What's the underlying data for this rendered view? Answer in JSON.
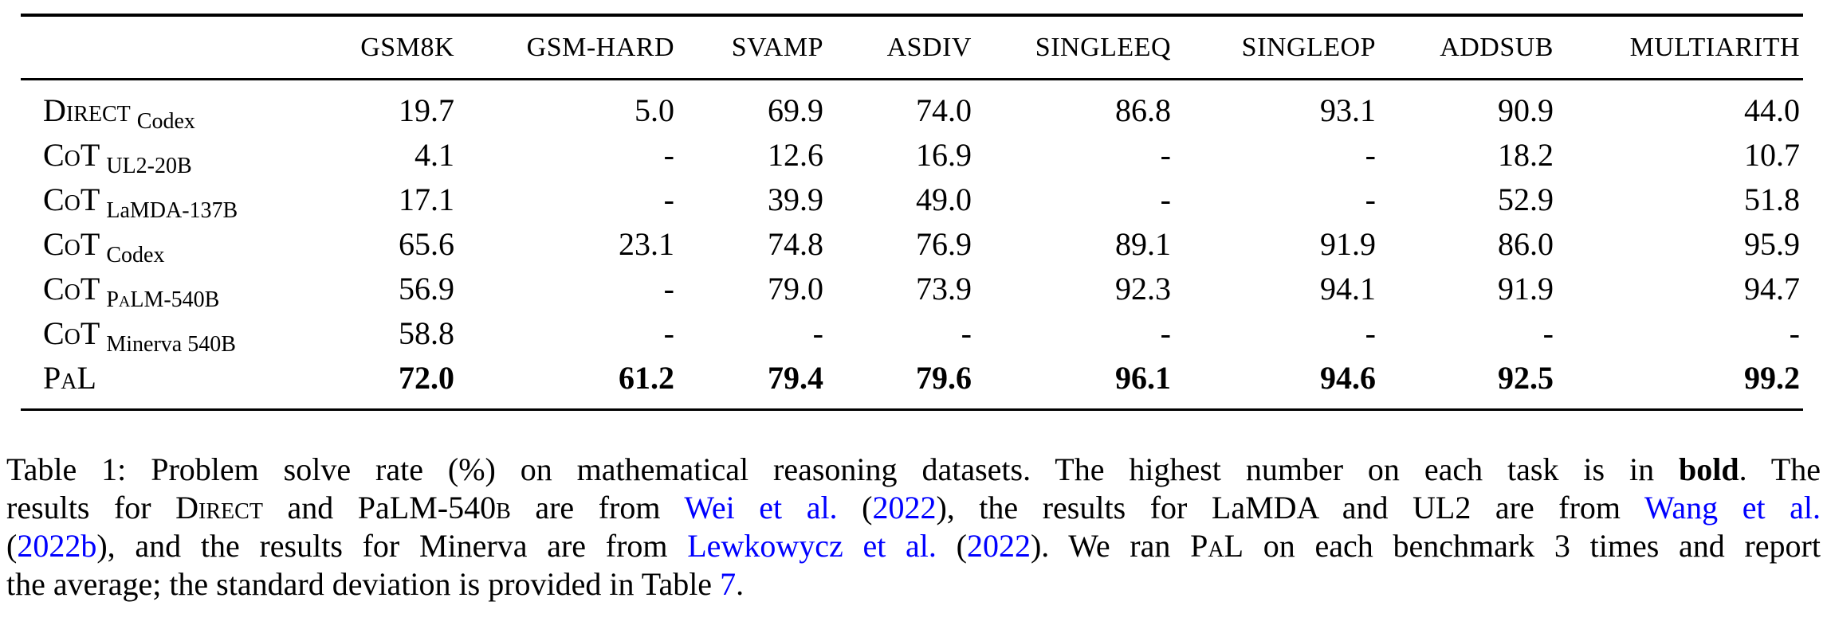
{
  "table": {
    "columns": [
      "GSM8K",
      "GSM-HARD",
      "SVAMP",
      "ASDIV",
      "SINGLEEQ",
      "SINGLEOP",
      "ADDSUB",
      "MULTIARITH"
    ],
    "rows": [
      {
        "method": "Direct",
        "model": "Codex",
        "values": [
          "19.7",
          "5.0",
          "69.9",
          "74.0",
          "86.8",
          "93.1",
          "90.9",
          "44.0"
        ],
        "bold": false
      },
      {
        "method": "CoT",
        "model": "UL2-20B",
        "values": [
          "4.1",
          "-",
          "12.6",
          "16.9",
          "-",
          "-",
          "18.2",
          "10.7"
        ],
        "bold": false
      },
      {
        "method": "CoT",
        "model": "LaMDA-137B",
        "values": [
          "17.1",
          "-",
          "39.9",
          "49.0",
          "-",
          "-",
          "52.9",
          "51.8"
        ],
        "bold": false
      },
      {
        "method": "CoT",
        "model": "Codex",
        "values": [
          "65.6",
          "23.1",
          "74.8",
          "76.9",
          "89.1",
          "91.9",
          "86.0",
          "95.9"
        ],
        "bold": false
      },
      {
        "method": "CoT",
        "model": "PaLM-540B",
        "values": [
          "56.9",
          "-",
          "79.0",
          "73.9",
          "92.3",
          "94.1",
          "91.9",
          "94.7"
        ],
        "bold": false
      },
      {
        "method": "CoT",
        "model": "Minerva 540B",
        "values": [
          "58.8",
          "-",
          "-",
          "-",
          "-",
          "-",
          "-",
          "-"
        ],
        "bold": false
      },
      {
        "method": "PaL",
        "model": "",
        "values": [
          "72.0",
          "61.2",
          "79.4",
          "79.6",
          "96.1",
          "94.6",
          "92.5",
          "99.2"
        ],
        "bold": true
      }
    ]
  },
  "caption": {
    "line1": {
      "a": "Table 1: Problem solve rate (%) on mathematical reasoning datasets. The highest number on each task is in ",
      "bold": "bold",
      "b": ". The"
    },
    "line2": {
      "a": "results for ",
      "direct": "Direct",
      "b": " and PaLM-540",
      "b_sc": "b",
      "c": " are from ",
      "link1": "Wei et al.",
      "d": " (",
      "link1_year": "2022",
      "e": "), the results for LaMDA and UL2 are from ",
      "link2": "Wang et al."
    },
    "line3": {
      "a": "(",
      "link2_year": "2022b",
      "b": "), and the results for Minerva are from ",
      "link3": "Lewkowycz et al.",
      "c": " (",
      "link3_year": "2022",
      "d": "). We ran ",
      "pal": "PaL",
      "e": " on each benchmark 3 times and report"
    },
    "line4": {
      "a": "the average; the standard deviation is provided in Table ",
      "link4": "7",
      "b": "."
    }
  },
  "colors": {
    "link": "#0000ff",
    "text": "#000000",
    "rule": "#000000"
  }
}
